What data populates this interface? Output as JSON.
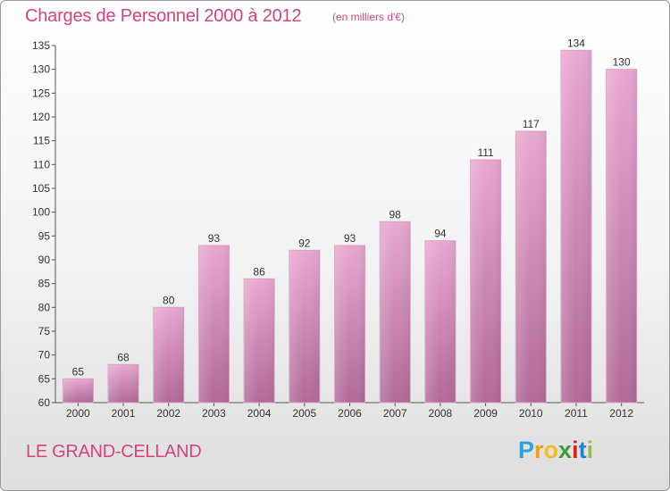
{
  "header": {
    "title": "Charges de Personnel 2000 à 2012",
    "subtitle": "(en milliers d'€)"
  },
  "footer": {
    "location": "LE GRAND-CELLAND",
    "logo": [
      "P",
      "r",
      "o",
      "x",
      "i",
      "t",
      "i"
    ]
  },
  "colors": {
    "accent": "#d6447a",
    "bar_top": "#e8a8cf",
    "bar_bottom": "#b06a96",
    "logo": [
      "#2aa4dd",
      "#f0a020",
      "#f0c020",
      "#3a9d3a",
      "#e02020",
      "#2a7fd0",
      "#8cc63e"
    ]
  },
  "chart_data": {
    "type": "bar",
    "categories": [
      "2000",
      "2001",
      "2002",
      "2003",
      "2004",
      "2005",
      "2006",
      "2007",
      "2008",
      "2009",
      "2010",
      "2011",
      "2012"
    ],
    "values": [
      65,
      68,
      80,
      93,
      86,
      92,
      93,
      98,
      94,
      111,
      117,
      134,
      130
    ],
    "title": "Charges de Personnel 2000 à 2012",
    "subtitle": "(en milliers d'€)",
    "ylim": [
      60,
      135
    ],
    "yticks": [
      60,
      65,
      70,
      75,
      80,
      85,
      90,
      95,
      100,
      105,
      110,
      115,
      120,
      125,
      130,
      135
    ],
    "grid": false
  }
}
